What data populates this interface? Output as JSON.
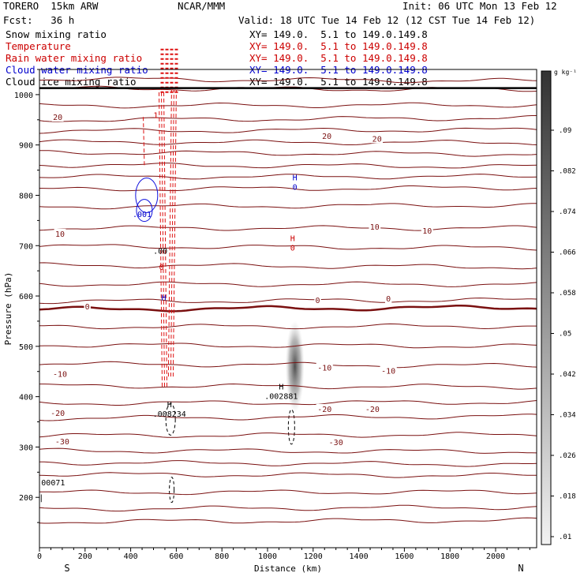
{
  "header": {
    "model": "TORERO  15km ARW",
    "center": "NCAR/MMM",
    "init": "Init: 06 UTC Mon 13 Feb 12",
    "fcst": "Fcst:   36 h",
    "valid": "Valid: 18 UTC Tue 14 Feb 12 (12 CST Tue 14 Feb 12)"
  },
  "fields": [
    {
      "name": "Snow mixing ratio",
      "xy": "XY= 149.0.  5.1 to 149.0.149.8",
      "color": "#000000"
    },
    {
      "name": "Temperature",
      "xy": "XY= 149.0.  5.1 to 149.0.149.8",
      "color": "#cc0000"
    },
    {
      "name": "Rain water mixing ratio",
      "xy": "XY= 149.0.  5.1 to 149.0.149.8",
      "color": "#cc0000"
    },
    {
      "name": "Cloud water mixing ratio",
      "xy": "XY= 149.0.  5.1 to 149.0.149.8",
      "color": "#0000cc"
    },
    {
      "name": "Cloud ice mixing ratio",
      "xy": "XY= 149.0.  5.1 to 149.0.149.8",
      "color": "#000000"
    }
  ],
  "colorbar": {
    "unit": "g kg⁻¹",
    "labels": [
      ".09",
      ".082",
      ".074",
      ".066",
      ".058",
      ".05",
      ".042",
      ".034",
      ".026",
      ".018",
      ".01"
    ]
  },
  "chart_data": {
    "type": "cross-section contour",
    "xlabel": "Distance (km)",
    "ylabel": "Pressure (hPa)",
    "xlim": [
      0,
      2180
    ],
    "ylim": [
      1050,
      100
    ],
    "x_ticks": [
      0,
      200,
      400,
      600,
      800,
      1000,
      1200,
      1400,
      1600,
      1800,
      2000
    ],
    "y_ticks": [
      200,
      300,
      400,
      500,
      600,
      700,
      800,
      900,
      1000
    ],
    "left_end": "S",
    "right_end": "N",
    "temperature_labels": [
      {
        "text": "-30",
        "x": 100,
        "p": 312
      },
      {
        "text": "-30",
        "x": 1300,
        "p": 310
      },
      {
        "text": "-20",
        "x": 80,
        "p": 368
      },
      {
        "text": "-20",
        "x": 1250,
        "p": 376
      },
      {
        "text": "-20",
        "x": 1460,
        "p": 376
      },
      {
        "text": "-10",
        "x": 90,
        "p": 446
      },
      {
        "text": "-10",
        "x": 1250,
        "p": 458
      },
      {
        "text": "-10",
        "x": 1530,
        "p": 452
      },
      {
        "text": "0",
        "x": 210,
        "p": 580
      },
      {
        "text": "0",
        "x": 1220,
        "p": 592
      },
      {
        "text": "0",
        "x": 1530,
        "p": 595
      },
      {
        "text": "10",
        "x": 90,
        "p": 724
      },
      {
        "text": "10",
        "x": 1470,
        "p": 738
      },
      {
        "text": "10",
        "x": 1700,
        "p": 730
      },
      {
        "text": "20",
        "x": 1260,
        "p": 918
      },
      {
        "text": "20",
        "x": 1480,
        "p": 913
      },
      {
        "text": "20",
        "x": 80,
        "p": 956
      }
    ],
    "extrema_labels": [
      {
        "mark": "H",
        "value": ".008234",
        "x": 570,
        "p": 370,
        "color": "#000000"
      },
      {
        "mark": "H",
        "value": ".002881",
        "x": 1060,
        "p": 405,
        "color": "#000000"
      },
      {
        "mark": "H",
        "value": "0",
        "x": 1110,
        "p": 700,
        "color": "#cc0000"
      },
      {
        "mark": "H",
        "value": "0",
        "x": 1120,
        "p": 820,
        "color": "#0000cc"
      }
    ],
    "small_labels": [
      {
        "text": "|",
        "x": 8,
        "p": 200,
        "color": "#000000"
      },
      {
        "text": "00071",
        "x": 60,
        "p": 230,
        "color": "#000000"
      },
      {
        "text": ".001",
        "x": 450,
        "p": 763,
        "color": "#0000cc"
      },
      {
        "text": ".00",
        "x": 530,
        "p": 690,
        "color": "#000000"
      },
      {
        "text": "H",
        "x": 545,
        "p": 598,
        "color": "#0000cc"
      },
      {
        "text": "0",
        "x": 535,
        "p": 658,
        "color": "#cc0000"
      },
      {
        "text": "1",
        "x": 510,
        "p": 960,
        "color": "#cc0000"
      }
    ]
  }
}
